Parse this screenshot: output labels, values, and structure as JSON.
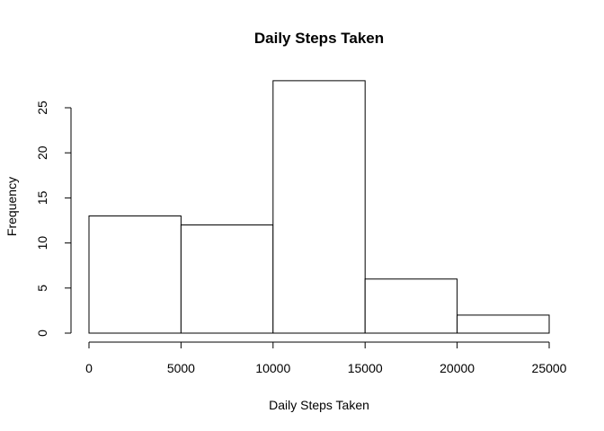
{
  "chart_data": {
    "type": "bar",
    "subtype": "histogram",
    "title": "Daily Steps Taken",
    "xlabel": "Daily Steps Taken",
    "ylabel": "Frequency",
    "bins": [
      {
        "start": 0,
        "end": 5000,
        "count": 13
      },
      {
        "start": 5000,
        "end": 10000,
        "count": 12
      },
      {
        "start": 10000,
        "end": 15000,
        "count": 28
      },
      {
        "start": 15000,
        "end": 20000,
        "count": 6
      },
      {
        "start": 20000,
        "end": 25000,
        "count": 2
      }
    ],
    "xlim": [
      0,
      25000
    ],
    "ylim": [
      0,
      28
    ],
    "x_ticks": [
      0,
      5000,
      10000,
      15000,
      20000,
      25000
    ],
    "y_ticks": [
      0,
      5,
      10,
      15,
      20,
      25
    ],
    "grid": false,
    "legend": "none",
    "colors": {
      "bar_fill": "#ffffff",
      "bar_stroke": "#000000"
    }
  }
}
